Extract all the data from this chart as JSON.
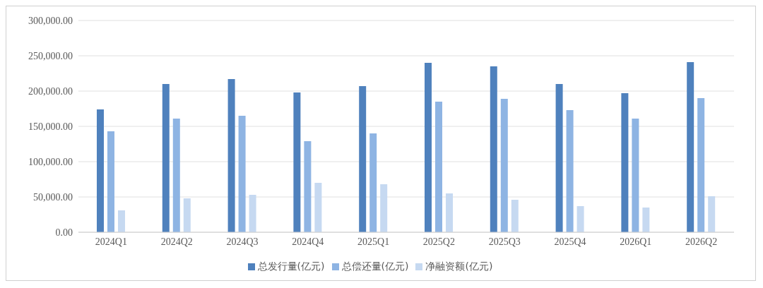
{
  "chart_data": {
    "type": "bar",
    "categories": [
      "2024Q1",
      "2024Q2",
      "2024Q3",
      "2024Q4",
      "2025Q1",
      "2025Q2",
      "2025Q3",
      "2025Q4",
      "2026Q1",
      "2026Q2"
    ],
    "series": [
      {
        "name": "总发行量(亿元)",
        "color": "#4f81bd",
        "values": [
          174000,
          210000,
          217000,
          198000,
          207000,
          240000,
          235000,
          210000,
          197000,
          241000
        ]
      },
      {
        "name": "总偿还量(亿元)",
        "color": "#8eb4e3",
        "values": [
          143000,
          161000,
          165000,
          129000,
          140000,
          185000,
          189000,
          173000,
          161000,
          190000
        ]
      },
      {
        "name": "净融资额(亿元)",
        "color": "#c6d9f1",
        "values": [
          31000,
          48000,
          53000,
          70000,
          68000,
          55000,
          46000,
          37000,
          35000,
          51000
        ]
      }
    ],
    "ylim": [
      0,
      300000
    ],
    "yticks": [
      {
        "value": 0,
        "label": "0.00"
      },
      {
        "value": 50000,
        "label": "50,000.00"
      },
      {
        "value": 100000,
        "label": "100,000.00"
      },
      {
        "value": 150000,
        "label": "150,000.00"
      },
      {
        "value": 200000,
        "label": "200,000.00"
      },
      {
        "value": 250000,
        "label": "250,000.00"
      },
      {
        "value": 300000,
        "label": "300,000.00"
      }
    ],
    "grid": "y",
    "legend": "bottom"
  }
}
